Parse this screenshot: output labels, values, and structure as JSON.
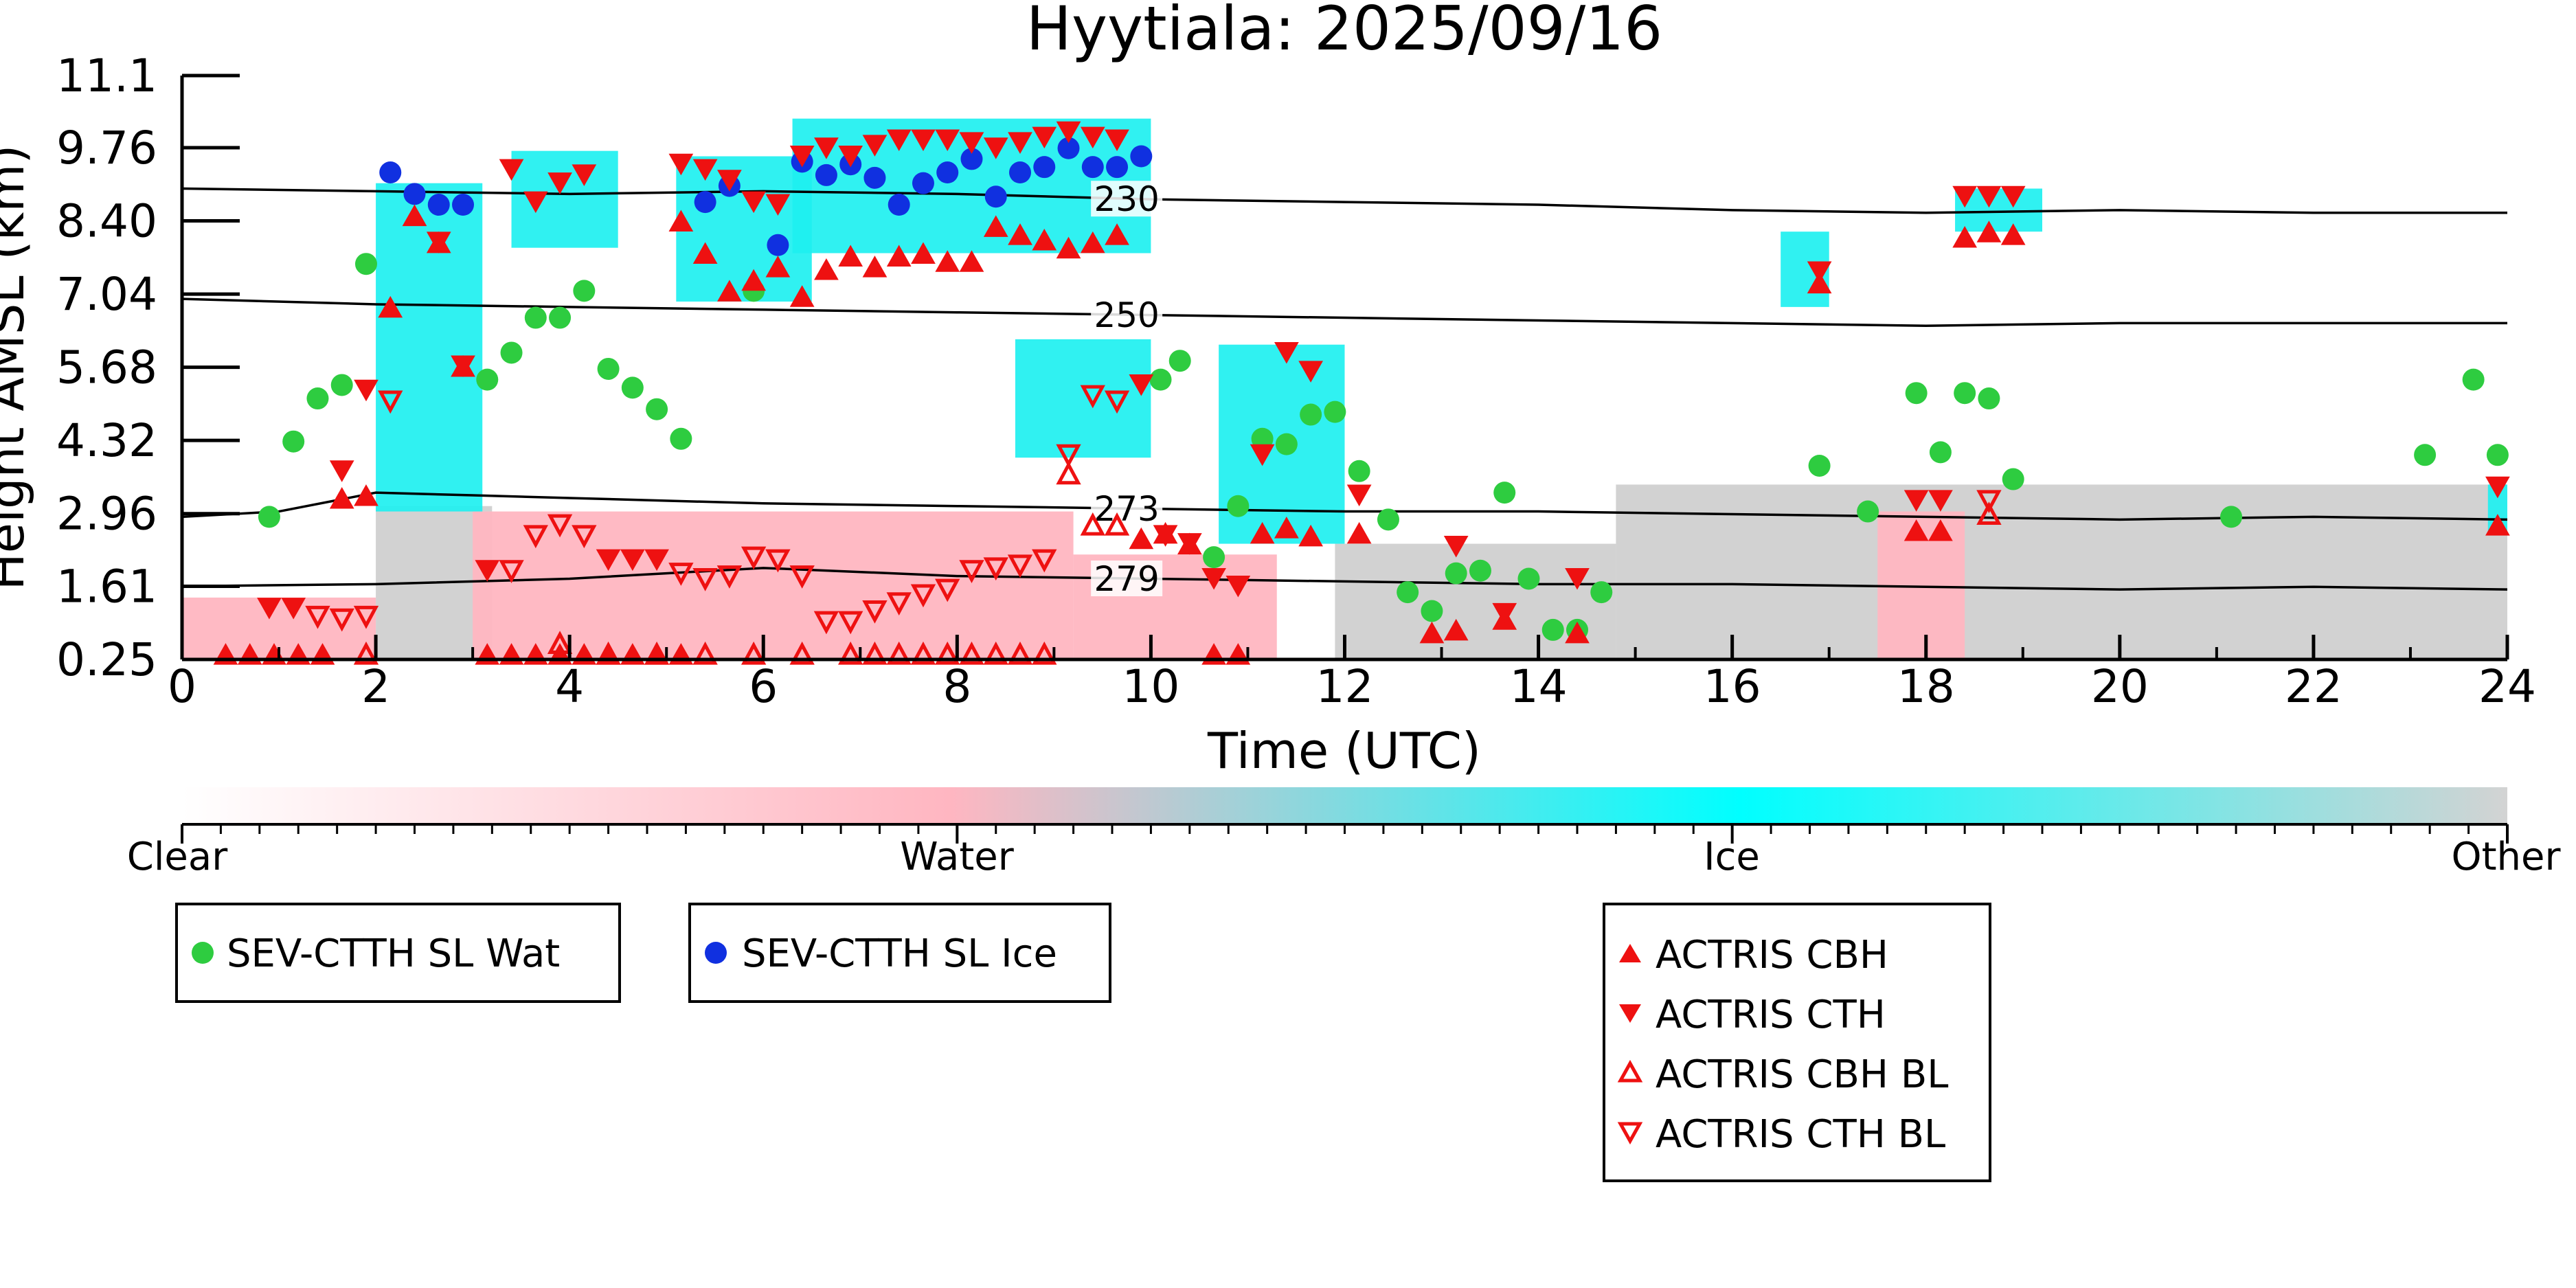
{
  "chart_data": {
    "type": "scatter",
    "title": "Hyytiala: 2025/09/16",
    "xlabel": "Time (UTC)",
    "ylabel": "Height AMSL (km)",
    "xlim": [
      0,
      24
    ],
    "ylim": [
      0.25,
      11.1
    ],
    "xticks": [
      0,
      2,
      4,
      6,
      8,
      10,
      12,
      14,
      16,
      18,
      20,
      22,
      24
    ],
    "ytick_labels": [
      "0.25",
      "1.61",
      "2.96",
      "4.32",
      "5.68",
      "7.04",
      "8.40",
      "9.76",
      "11.1"
    ],
    "colorbar": {
      "labels": [
        "Clear",
        "Water",
        "Ice",
        "Other"
      ],
      "colors": [
        "#ffffff",
        "#ffb6c1",
        "#00ffff",
        "#d3d3d3"
      ]
    },
    "background_classes": [
      {
        "class": "Ice",
        "color": "#1ef0f0",
        "regions": [
          {
            "x": [
              2.0,
              3.1
            ],
            "y": [
              3.0,
              9.1
            ]
          },
          {
            "x": [
              3.4,
              4.5
            ],
            "y": [
              7.9,
              9.7
            ]
          },
          {
            "x": [
              5.1,
              6.5
            ],
            "y": [
              6.9,
              9.6
            ]
          },
          {
            "x": [
              6.3,
              10.0
            ],
            "y": [
              7.8,
              10.3
            ]
          },
          {
            "x": [
              8.6,
              10.0
            ],
            "y": [
              4.0,
              6.2
            ]
          },
          {
            "x": [
              10.7,
              12.0
            ],
            "y": [
              2.4,
              6.1
            ]
          },
          {
            "x": [
              16.5,
              17.0
            ],
            "y": [
              6.8,
              8.2
            ]
          },
          {
            "x": [
              18.3,
              19.2
            ],
            "y": [
              8.2,
              9.0
            ]
          },
          {
            "x": [
              23.8,
              24.0
            ],
            "y": [
              2.6,
              3.5
            ]
          }
        ]
      },
      {
        "class": "Water",
        "color": "#ffb6c1",
        "regions": [
          {
            "x": [
              0.0,
              2.0
            ],
            "y": [
              0.25,
              1.4
            ]
          },
          {
            "x": [
              3.0,
              9.2
            ],
            "y": [
              0.25,
              3.0
            ]
          },
          {
            "x": [
              9.2,
              11.3
            ],
            "y": [
              0.25,
              2.2
            ]
          },
          {
            "x": [
              17.5,
              18.4
            ],
            "y": [
              0.25,
              3.0
            ]
          }
        ]
      },
      {
        "class": "Other",
        "color": "#d0d0d0",
        "regions": [
          {
            "x": [
              2.0,
              3.2
            ],
            "y": [
              0.25,
              3.1
            ]
          },
          {
            "x": [
              11.9,
              14.8
            ],
            "y": [
              0.25,
              2.4
            ]
          },
          {
            "x": [
              14.8,
              24.0
            ],
            "y": [
              0.25,
              3.5
            ]
          }
        ]
      }
    ],
    "contours": [
      {
        "label": "230",
        "x": [
          0,
          2,
          4,
          6,
          8,
          10,
          12,
          14,
          16,
          18,
          20,
          22,
          24
        ],
        "y": [
          9.0,
          8.95,
          8.9,
          8.95,
          8.9,
          8.8,
          8.75,
          8.7,
          8.6,
          8.55,
          8.6,
          8.55,
          8.55
        ]
      },
      {
        "label": "250",
        "x": [
          0,
          2,
          4,
          6,
          8,
          10,
          12,
          14,
          16,
          18,
          20,
          22,
          24
        ],
        "y": [
          6.95,
          6.85,
          6.8,
          6.75,
          6.7,
          6.65,
          6.6,
          6.55,
          6.5,
          6.45,
          6.5,
          6.5,
          6.5
        ]
      },
      {
        "label": "273",
        "x": [
          0,
          1,
          2,
          3,
          4,
          6,
          8,
          10,
          12,
          14,
          16,
          18,
          20,
          22,
          24
        ],
        "y": [
          2.9,
          3.0,
          3.35,
          3.3,
          3.25,
          3.15,
          3.1,
          3.05,
          3.0,
          3.0,
          2.95,
          2.9,
          2.85,
          2.9,
          2.85
        ]
      },
      {
        "label": "279",
        "x": [
          0,
          2,
          4,
          6,
          8,
          10,
          12,
          14,
          16,
          18,
          20,
          22,
          24
        ],
        "y": [
          1.61,
          1.65,
          1.75,
          1.95,
          1.8,
          1.75,
          1.7,
          1.65,
          1.65,
          1.6,
          1.55,
          1.6,
          1.55
        ]
      }
    ],
    "series": [
      {
        "name": "SEV-CTTH SL Wat",
        "marker": "circle",
        "color": "#2ecc40",
        "x": [
          0.9,
          1.15,
          1.4,
          1.65,
          1.9,
          3.15,
          3.4,
          3.65,
          3.9,
          4.15,
          4.4,
          4.65,
          4.9,
          5.15,
          5.9,
          10.1,
          10.3,
          10.65,
          10.9,
          11.15,
          11.4,
          11.65,
          11.9,
          12.15,
          12.45,
          12.65,
          12.9,
          13.15,
          13.4,
          13.65,
          13.9,
          14.15,
          14.4,
          14.65,
          16.9,
          17.4,
          17.9,
          18.15,
          18.4,
          18.65,
          18.9,
          21.15,
          23.15,
          23.65,
          23.9
        ],
        "y": [
          2.9,
          4.3,
          5.1,
          5.35,
          7.6,
          5.45,
          5.95,
          6.6,
          6.6,
          7.1,
          5.65,
          5.3,
          4.9,
          4.35,
          7.1,
          5.45,
          5.8,
          2.15,
          3.1,
          4.35,
          4.25,
          4.8,
          4.85,
          3.75,
          2.85,
          1.5,
          1.15,
          1.85,
          1.9,
          3.35,
          1.75,
          0.8,
          0.8,
          1.5,
          3.85,
          3.0,
          5.2,
          4.1,
          5.2,
          5.1,
          3.6,
          2.9,
          4.05,
          5.45,
          4.05
        ]
      },
      {
        "name": "SEV-CTTH SL Ice",
        "marker": "circle",
        "color": "#1030e0",
        "x": [
          2.15,
          2.4,
          2.65,
          2.9,
          5.4,
          5.65,
          6.15,
          6.4,
          6.65,
          6.9,
          7.15,
          7.4,
          7.65,
          7.9,
          8.15,
          8.4,
          8.65,
          8.9,
          9.15,
          9.4,
          9.65,
          9.9
        ],
        "y": [
          9.3,
          8.9,
          8.7,
          8.7,
          8.75,
          9.05,
          7.95,
          9.5,
          9.25,
          9.45,
          9.2,
          8.7,
          9.1,
          9.3,
          9.55,
          8.85,
          9.3,
          9.4,
          9.75,
          9.4,
          9.4,
          9.6
        ]
      },
      {
        "name": "ACTRIS CBH",
        "marker": "triangle-up",
        "color": "#ee1111",
        "filled": true,
        "x": [
          0.45,
          0.7,
          0.95,
          1.2,
          1.45,
          1.65,
          1.9,
          2.15,
          2.4,
          2.65,
          2.9,
          3.15,
          3.4,
          3.65,
          3.9,
          4.15,
          4.4,
          4.65,
          4.9,
          5.15,
          5.15,
          5.4,
          5.65,
          5.9,
          6.15,
          6.4,
          6.65,
          6.9,
          7.15,
          7.4,
          7.65,
          7.9,
          8.15,
          8.4,
          8.65,
          8.9,
          9.15,
          9.4,
          9.65,
          9.9,
          10.15,
          10.4,
          10.65,
          10.9,
          11.15,
          11.4,
          11.65,
          12.15,
          12.9,
          13.15,
          13.65,
          14.4,
          16.9,
          17.9,
          18.15,
          18.4,
          18.65,
          18.9,
          23.9
        ],
        "y": [
          0.35,
          0.35,
          0.35,
          0.35,
          0.35,
          3.25,
          3.3,
          6.8,
          8.5,
          8.0,
          5.7,
          0.35,
          0.35,
          0.35,
          0.35,
          0.35,
          0.35,
          0.35,
          0.35,
          0.35,
          8.4,
          7.8,
          7.1,
          7.3,
          7.55,
          7.0,
          7.5,
          7.75,
          7.55,
          7.75,
          7.8,
          7.65,
          7.65,
          8.3,
          8.15,
          8.05,
          7.9,
          8.0,
          8.15,
          2.5,
          2.6,
          2.4,
          0.35,
          0.35,
          2.6,
          2.7,
          2.55,
          2.6,
          0.75,
          0.8,
          1.0,
          0.75,
          7.25,
          2.65,
          2.65,
          8.1,
          8.2,
          8.15,
          2.75
        ]
      },
      {
        "name": "ACTRIS CTH",
        "marker": "triangle-down",
        "color": "#ee1111",
        "filled": true,
        "x": [
          0.9,
          1.15,
          1.65,
          1.9,
          2.65,
          2.9,
          3.15,
          3.4,
          3.65,
          3.9,
          4.15,
          4.4,
          4.65,
          4.9,
          5.15,
          5.4,
          5.65,
          5.9,
          6.15,
          6.4,
          6.65,
          6.9,
          7.15,
          7.4,
          7.65,
          7.9,
          8.15,
          8.4,
          8.65,
          8.9,
          9.15,
          9.4,
          9.65,
          9.9,
          10.15,
          10.4,
          10.65,
          10.9,
          11.15,
          11.4,
          11.65,
          12.15,
          13.15,
          13.65,
          14.4,
          16.9,
          17.9,
          18.15,
          18.4,
          18.65,
          18.9,
          23.9
        ],
        "y": [
          1.2,
          1.2,
          3.75,
          5.25,
          8.0,
          5.7,
          1.9,
          9.35,
          8.75,
          9.1,
          9.25,
          2.1,
          2.1,
          2.1,
          9.45,
          9.35,
          9.15,
          8.75,
          8.7,
          9.6,
          9.75,
          9.6,
          9.8,
          9.9,
          9.9,
          9.9,
          9.85,
          9.75,
          9.85,
          9.95,
          10.05,
          9.95,
          9.9,
          5.35,
          2.55,
          2.4,
          1.75,
          1.61,
          4.05,
          5.95,
          5.6,
          3.3,
          2.35,
          1.1,
          1.75,
          7.45,
          3.2,
          3.2,
          8.85,
          8.85,
          8.85,
          3.45
        ]
      },
      {
        "name": "ACTRIS CBH BL",
        "marker": "triangle-up",
        "color": "#ee1111",
        "filled": false,
        "x": [
          1.9,
          3.9,
          4.4,
          4.9,
          5.4,
          5.9,
          6.4,
          6.9,
          7.15,
          7.4,
          7.65,
          7.9,
          8.15,
          8.4,
          8.65,
          8.9,
          9.15,
          9.4,
          9.65,
          18.65
        ],
        "y": [
          0.35,
          0.55,
          0.35,
          0.35,
          0.35,
          0.35,
          0.35,
          0.35,
          0.35,
          0.35,
          0.35,
          0.35,
          0.35,
          0.35,
          0.35,
          0.35,
          3.7,
          2.75,
          2.75,
          2.95
        ]
      },
      {
        "name": "ACTRIS CTH BL",
        "marker": "triangle-down",
        "color": "#ee1111",
        "filled": false,
        "x": [
          1.4,
          1.65,
          1.9,
          2.15,
          3.4,
          3.65,
          3.9,
          4.15,
          5.15,
          5.4,
          5.65,
          5.9,
          6.15,
          6.4,
          6.65,
          6.9,
          7.15,
          7.4,
          7.65,
          7.9,
          8.15,
          8.4,
          8.65,
          8.9,
          9.15,
          9.4,
          9.65,
          18.65
        ],
        "y": [
          1.05,
          1.0,
          1.05,
          5.05,
          1.9,
          2.55,
          2.75,
          2.55,
          1.85,
          1.75,
          1.8,
          2.15,
          2.1,
          1.8,
          0.95,
          0.95,
          1.15,
          1.3,
          1.45,
          1.55,
          1.9,
          1.95,
          2.0,
          2.1,
          4.05,
          5.15,
          5.05,
          3.2
        ]
      }
    ],
    "legends": [
      {
        "entries": [
          "SEV-CTTH SL Wat"
        ]
      },
      {
        "entries": [
          "SEV-CTTH SL Ice"
        ]
      },
      {
        "entries": [
          "ACTRIS CBH",
          "ACTRIS CTH",
          "ACTRIS CBH BL",
          "ACTRIS CTH BL"
        ]
      }
    ]
  }
}
